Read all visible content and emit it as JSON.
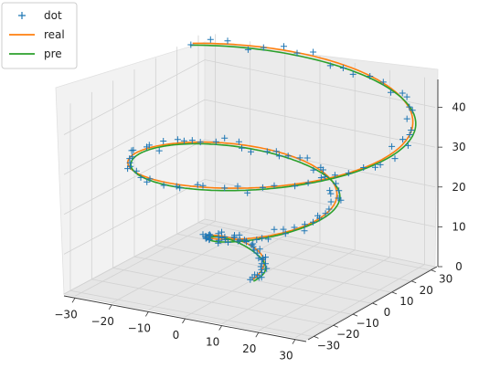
{
  "chart_data": {
    "type": "line",
    "projection": "3d",
    "legend": {
      "placement": "top-left",
      "entries": [
        {
          "label": "dot",
          "marker": "+",
          "color": "#1f77b4"
        },
        {
          "label": "real",
          "marker": "line",
          "color": "#ff7f0e"
        },
        {
          "label": "pre",
          "marker": "line",
          "color": "#2ca02c"
        }
      ]
    },
    "x_ticks": [
      "−30",
      "−20",
      "−10",
      "0",
      "10",
      "20",
      "30"
    ],
    "y_ticks": [
      "−30",
      "−20",
      "−10",
      "0",
      "10",
      "20",
      "30"
    ],
    "z_ticks": [
      "0",
      "10",
      "20",
      "30",
      "40"
    ],
    "xlim": [
      -33,
      33
    ],
    "ylim": [
      -33,
      33
    ],
    "zlim": [
      0,
      47
    ],
    "grid": true,
    "helix": {
      "description_param": "t from 0 to 15",
      "x": "3*t*cos(t)",
      "y": "3*t*sin(t)",
      "z": "3*t",
      "t_range": [
        0,
        15
      ]
    },
    "series": [
      {
        "name": "dot",
        "style": "marker",
        "color": "#1f77b4",
        "points": 150
      },
      {
        "name": "real",
        "style": "line",
        "color": "#ff7f0e"
      },
      {
        "name": "pre",
        "style": "line",
        "color": "#2ca02c"
      }
    ]
  }
}
